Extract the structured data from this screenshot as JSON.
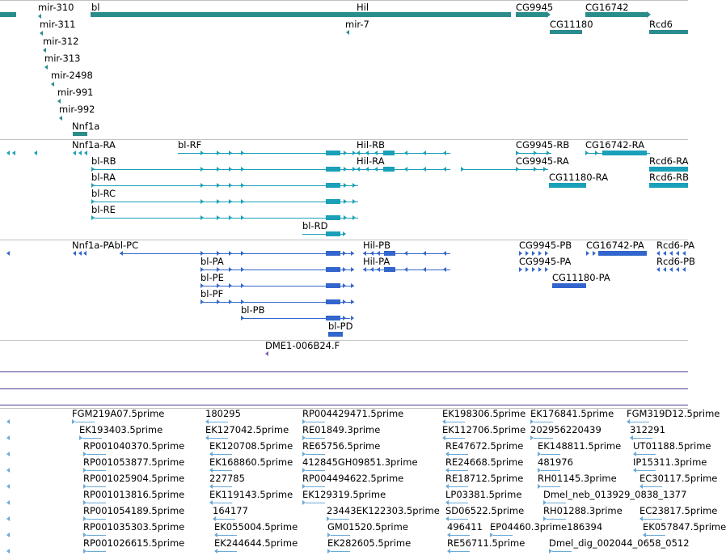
{
  "colors": {
    "gene": "#2b8c8c",
    "transcript": "#1aa0b8",
    "protein": "#3366cc",
    "clone": "#7f5fb0",
    "est": "#6aaad8",
    "divider": "#c0c0c0",
    "guide": "#4a3f9a"
  },
  "tracks": [
    {
      "id": "genes",
      "features": [
        {
          "label": "mir-310"
        },
        {
          "label": "mir-311"
        },
        {
          "label": "mir-312"
        },
        {
          "label": "mir-313"
        },
        {
          "label": "mir-2498"
        },
        {
          "label": "mir-991"
        },
        {
          "label": "mir-992"
        },
        {
          "label": "Nnf1a"
        },
        {
          "label": "bl"
        },
        {
          "label": "Hil"
        },
        {
          "label": "mir-7"
        },
        {
          "label": "CG9945"
        },
        {
          "label": "CG16742"
        },
        {
          "label": "CG11180"
        },
        {
          "label": "Rcd6"
        }
      ]
    },
    {
      "id": "transcripts",
      "features": [
        {
          "label": "Nnf1a-RA"
        },
        {
          "label": "bl-RF"
        },
        {
          "label": "bl-RB"
        },
        {
          "label": "bl-RA"
        },
        {
          "label": "bl-RC"
        },
        {
          "label": "bl-RE"
        },
        {
          "label": "bl-RD"
        },
        {
          "label": "Hil-RB"
        },
        {
          "label": "Hil-RA"
        },
        {
          "label": "CG9945-RB"
        },
        {
          "label": "CG9945-RA"
        },
        {
          "label": "CG16742-RA"
        },
        {
          "label": "CG11180-RA"
        },
        {
          "label": "Rcd6-RA"
        },
        {
          "label": "Rcd6-RB"
        }
      ]
    },
    {
      "id": "proteins",
      "features": [
        {
          "label": "Nnf1a-PAbl-PC"
        },
        {
          "label": "bl-PA"
        },
        {
          "label": "bl-PE"
        },
        {
          "label": "bl-PF"
        },
        {
          "label": "bl-PB"
        },
        {
          "label": "bl-PD"
        },
        {
          "label": "Hil-PB"
        },
        {
          "label": "Hil-PA"
        },
        {
          "label": "CG9945-PB"
        },
        {
          "label": "CG9945-PA"
        },
        {
          "label": "CG16742-PA"
        },
        {
          "label": "CG11180-PA"
        },
        {
          "label": "Rcd6-PA"
        },
        {
          "label": "Rcd6-PB"
        }
      ]
    },
    {
      "id": "clones",
      "features": [
        {
          "label": "DME1-006B24.F"
        }
      ]
    },
    {
      "id": "ests",
      "features": [
        {
          "label": "FGM219A07.5prime"
        },
        {
          "label": "180295"
        },
        {
          "label": "RP004429471.5prime"
        },
        {
          "label": "EK198306.5prime"
        },
        {
          "label": "EK176841.5prime"
        },
        {
          "label": "FGM319D12.5prime"
        },
        {
          "label": "EK193403.5prime"
        },
        {
          "label": "EK127042.5prime"
        },
        {
          "label": "RE01849.3prime"
        },
        {
          "label": "EK112706.5prime"
        },
        {
          "label": "202956220439"
        },
        {
          "label": "312291"
        },
        {
          "label": "RP001040370.5prime"
        },
        {
          "label": "EK120708.5prime"
        },
        {
          "label": "RE65756.5prime"
        },
        {
          "label": "RE47672.5prime"
        },
        {
          "label": "EK148811.5prime"
        },
        {
          "label": "UT01188.5prime"
        },
        {
          "label": "RP001053877.5prime"
        },
        {
          "label": "EK168860.5prime"
        },
        {
          "label": "412845GH09851.3prime"
        },
        {
          "label": "RE24668.5prime"
        },
        {
          "label": "481976"
        },
        {
          "label": "IP15311.3prime"
        },
        {
          "label": "RP001025904.5prime"
        },
        {
          "label": "227785"
        },
        {
          "label": "RP004494622.5prime"
        },
        {
          "label": "RE18712.5prime"
        },
        {
          "label": "RH01145.3prime"
        },
        {
          "label": "EC30117.5prime"
        },
        {
          "label": "RP001013816.5prime"
        },
        {
          "label": "EK119143.5prime"
        },
        {
          "label": "EK129319.5prime"
        },
        {
          "label": "LP03381.5prime"
        },
        {
          "label": "Dmel_neb_013929_0838_1377"
        },
        {
          "label": "RP001054189.5prime"
        },
        {
          "label": "164177"
        },
        {
          "label": "23443EK122303.5prime"
        },
        {
          "label": "SD06522.5prime"
        },
        {
          "label": "RH01288.3prime"
        },
        {
          "label": "EC23817.5prime"
        },
        {
          "label": "RP001035303.5prime"
        },
        {
          "label": "EK055004.5prime"
        },
        {
          "label": "GM01520.5prime"
        },
        {
          "label": "496411"
        },
        {
          "label": "EP04460.3prime186394"
        },
        {
          "label": "EK057847.5prime"
        },
        {
          "label": "RP001026615.5prime"
        },
        {
          "label": "EK244644.5prime"
        },
        {
          "label": "EK282605.5prime"
        },
        {
          "label": "RE56711.5prime"
        },
        {
          "label": "Dmel_dig_002044_0658_0512"
        }
      ]
    }
  ]
}
